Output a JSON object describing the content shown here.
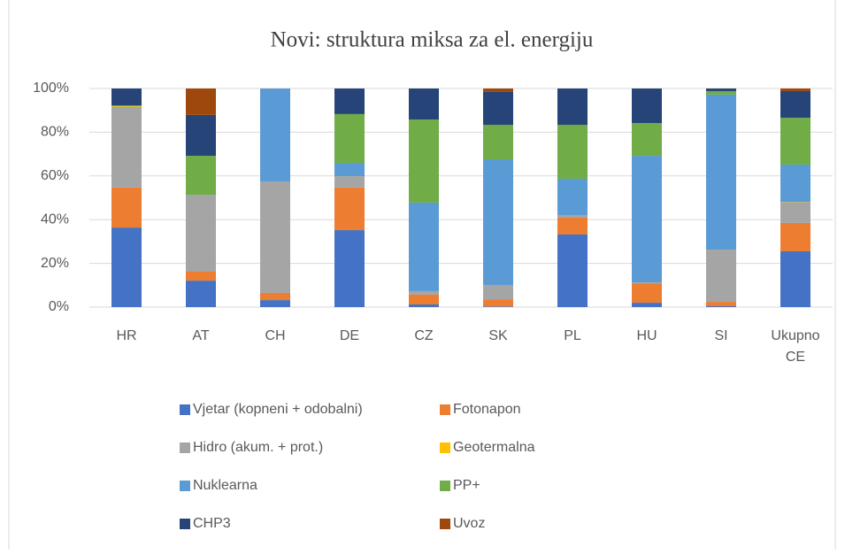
{
  "chart_data": {
    "type": "stacked_bar",
    "title": "Novi: struktura miksa za el. energiju",
    "categories": [
      "HR",
      "AT",
      "CH",
      "DE",
      "CZ",
      "SK",
      "PL",
      "HU",
      "SI",
      "Ukupno CE"
    ],
    "series": [
      {
        "name": "Vjetar (kopneni + odobalni)",
        "color": "#4472c4",
        "values": [
          36.4,
          12.1,
          3.2,
          35.2,
          1.2,
          0.3,
          33.2,
          2,
          0.4,
          25.5
        ]
      },
      {
        "name": "Fotonapon",
        "color": "#ed7d31",
        "values": [
          18.3,
          4.1,
          3.3,
          19.5,
          4.5,
          3.3,
          7.7,
          8.9,
          2,
          13
        ]
      },
      {
        "name": "Hidro (akum. + prot.)",
        "color": "#a5a5a5",
        "values": [
          36.8,
          35.2,
          51,
          5.2,
          1.6,
          6.5,
          1.2,
          0.4,
          23.9,
          9.3
        ]
      },
      {
        "name": "Geotermalna",
        "color": "#ffc000",
        "values": [
          0.3,
          0,
          0,
          0,
          0,
          0,
          0,
          0,
          0,
          0.2
        ]
      },
      {
        "name": "Nuklearna",
        "color": "#5b9bd5",
        "values": [
          0,
          0,
          42.5,
          6.1,
          40.5,
          57.5,
          16.6,
          57.9,
          70.9,
          17.2
        ]
      },
      {
        "name": "PP+",
        "color": "#70ad47",
        "values": [
          0.5,
          17.8,
          0,
          22.3,
          38,
          15.8,
          24.7,
          15,
          1.6,
          21.4
        ]
      },
      {
        "name": "CHP3",
        "color": "#264478",
        "values": [
          7.7,
          18.7,
          0,
          11.7,
          14.2,
          15,
          16.6,
          15.8,
          1.2,
          12.2
        ]
      },
      {
        "name": "Uvoz",
        "color": "#9e480e",
        "values": [
          0,
          12.1,
          0,
          0,
          0,
          1.6,
          0,
          0,
          0,
          1.2
        ]
      }
    ],
    "ylim": [
      0,
      100
    ],
    "yticks": [
      {
        "value": 0,
        "label": "0%"
      },
      {
        "value": 20,
        "label": "20%"
      },
      {
        "value": 40,
        "label": "40%"
      },
      {
        "value": 60,
        "label": "60%"
      },
      {
        "value": 80,
        "label": "80%"
      },
      {
        "value": 100,
        "label": "100%"
      }
    ],
    "grid": true,
    "legend": "bottom"
  }
}
